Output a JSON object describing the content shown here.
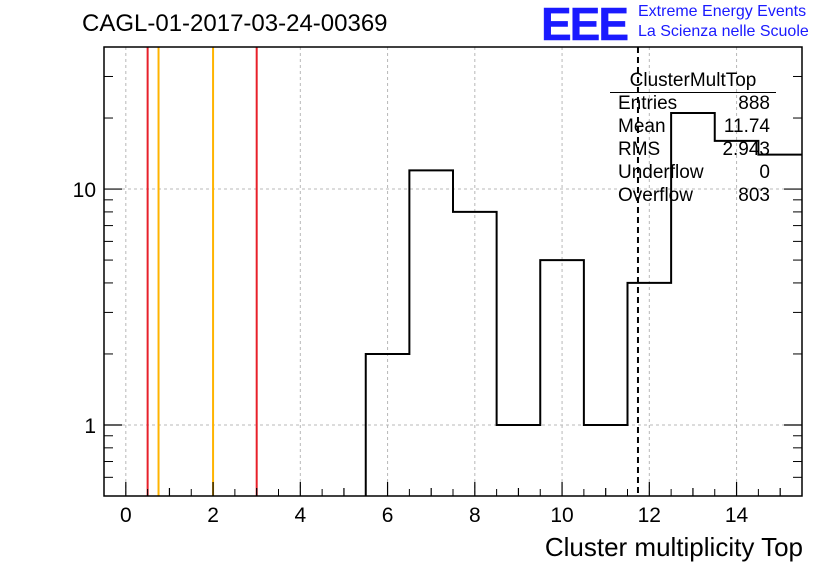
{
  "header": {
    "title": "CAGL-01-2017-03-24-00369",
    "logo_letters": "EEE",
    "logo_line1": "Extreme Energy Events",
    "logo_line2": "La Scienza nelle Scuole",
    "logo_color": "#1a1aff"
  },
  "stats": {
    "name": "ClusterMultTop",
    "rows": [
      {
        "label": "Entries",
        "value": "888"
      },
      {
        "label": "Mean",
        "value": "11.74"
      },
      {
        "label": "RMS",
        "value": "2.943"
      },
      {
        "label": "Underflow",
        "value": "0"
      },
      {
        "label": "Overflow",
        "value": "803"
      }
    ]
  },
  "chart_data": {
    "type": "histogram",
    "xlabel": "Cluster multiplicity Top",
    "ylabel": "",
    "yscale": "log",
    "xlim": [
      -0.5,
      15.5
    ],
    "ylim": [
      0.5,
      40
    ],
    "x_ticks": [
      0,
      2,
      4,
      6,
      8,
      10,
      12,
      14
    ],
    "y_ticks": [
      1,
      10
    ],
    "grid": true,
    "bins": [
      {
        "low": 5.5,
        "high": 6.5,
        "count": 2
      },
      {
        "low": 6.5,
        "high": 7.5,
        "count": 12
      },
      {
        "low": 7.5,
        "high": 8.5,
        "count": 8
      },
      {
        "low": 8.5,
        "high": 9.5,
        "count": 1
      },
      {
        "low": 9.5,
        "high": 10.5,
        "count": 5
      },
      {
        "low": 10.5,
        "high": 11.5,
        "count": 1
      },
      {
        "low": 11.5,
        "high": 12.5,
        "count": 4
      },
      {
        "low": 12.5,
        "high": 13.5,
        "count": 21
      },
      {
        "low": 13.5,
        "high": 14.5,
        "count": 16
      },
      {
        "low": 14.5,
        "high": 15.5,
        "count": 14
      }
    ],
    "vertical_lines": [
      {
        "x": 0.5,
        "color": "#e8202a",
        "style": "solid"
      },
      {
        "x": 0.75,
        "color": "#ffb400",
        "style": "solid"
      },
      {
        "x": 2.0,
        "color": "#ffb400",
        "style": "solid"
      },
      {
        "x": 3.0,
        "color": "#e8202a",
        "style": "solid"
      },
      {
        "x": 11.74,
        "color": "#000000",
        "style": "dashed"
      }
    ]
  }
}
